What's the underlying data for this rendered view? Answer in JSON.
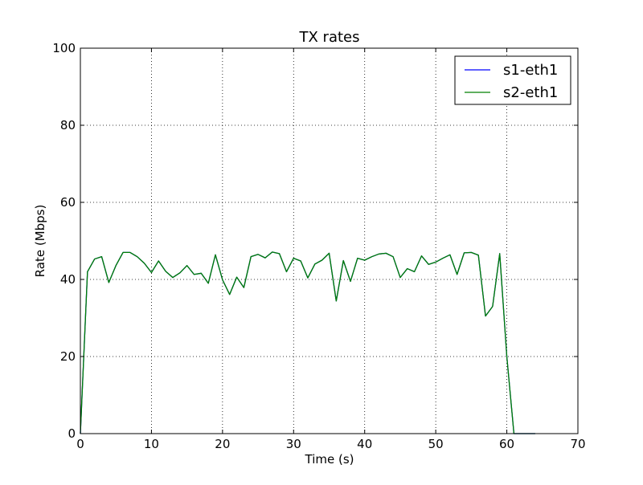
{
  "chart_data": {
    "type": "line",
    "title": "TX rates",
    "xlabel": "Time (s)",
    "ylabel": "Rate (Mbps)",
    "xlim": [
      0,
      70
    ],
    "ylim": [
      0,
      100
    ],
    "xticks": [
      0,
      10,
      20,
      30,
      40,
      50,
      60,
      70
    ],
    "yticks": [
      0,
      20,
      40,
      60,
      80,
      100
    ],
    "grid": true,
    "legend_position": "top-right",
    "x": [
      0,
      1,
      2,
      3,
      4,
      5,
      6,
      7,
      8,
      9,
      10,
      11,
      12,
      13,
      14,
      15,
      16,
      17,
      18,
      19,
      20,
      21,
      22,
      23,
      24,
      25,
      26,
      27,
      28,
      29,
      30,
      31,
      32,
      33,
      34,
      35,
      36,
      37,
      38,
      39,
      40,
      41,
      42,
      43,
      44,
      45,
      46,
      47,
      48,
      49,
      50,
      51,
      52,
      53,
      54,
      55,
      56,
      57,
      58,
      59,
      60,
      61,
      62,
      63,
      64
    ],
    "series": [
      {
        "name": "s1-eth1",
        "color": "#0000ff",
        "values": [
          0,
          42,
          45.3,
          45.9,
          39.2,
          43.6,
          47,
          47,
          45.9,
          44.2,
          41.8,
          44.8,
          42.1,
          40.5,
          41.7,
          43.6,
          41.3,
          41.6,
          39,
          46.4,
          39.9,
          36.1,
          40.6,
          37.9,
          45.9,
          46.5,
          45.6,
          47.1,
          46.7,
          42,
          45.5,
          44.8,
          40.4,
          44,
          45,
          46.8,
          34.4,
          44.9,
          39.5,
          45.5,
          45,
          45.9,
          46.6,
          46.8,
          45.9,
          40.5,
          42.8,
          42,
          46.1,
          43.9,
          44.5,
          45.5,
          46.4,
          41.3,
          46.9,
          47,
          46.3,
          30.5,
          33,
          46.7,
          20,
          0,
          0,
          0,
          0
        ]
      },
      {
        "name": "s2-eth1",
        "color": "#008000",
        "values": [
          0,
          42,
          45.3,
          45.9,
          39.2,
          43.6,
          47,
          47,
          45.9,
          44.2,
          41.8,
          44.8,
          42.1,
          40.5,
          41.7,
          43.6,
          41.3,
          41.6,
          39,
          46.4,
          39.9,
          36.1,
          40.6,
          37.9,
          45.9,
          46.5,
          45.6,
          47.1,
          46.7,
          42,
          45.5,
          44.8,
          40.4,
          44,
          45,
          46.8,
          34.4,
          44.9,
          39.5,
          45.5,
          45,
          45.9,
          46.6,
          46.8,
          45.9,
          40.5,
          42.8,
          42,
          46.1,
          43.9,
          44.5,
          45.5,
          46.4,
          41.3,
          46.9,
          47,
          46.3,
          30.5,
          33,
          46.7,
          20,
          0,
          0,
          0,
          0
        ]
      }
    ]
  }
}
